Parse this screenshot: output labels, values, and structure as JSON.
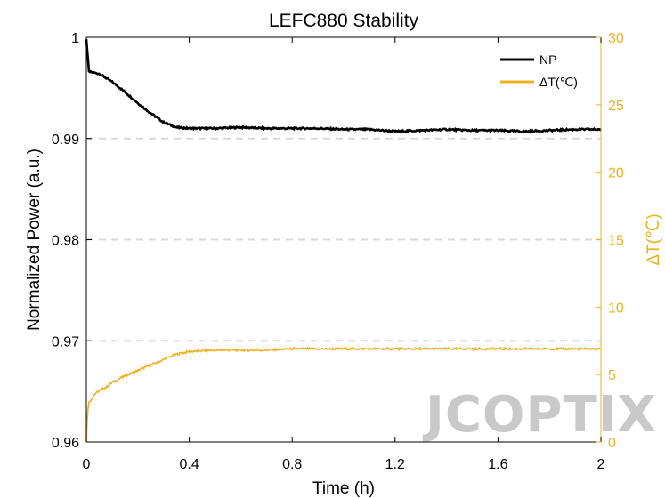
{
  "chart_data": {
    "type": "line",
    "title": "LEFC880 Stability",
    "xlabel": "Time (h)",
    "ylabel": "Normalized Power (a.u.)",
    "y2label": "ΔT(℃)",
    "xlim": [
      0,
      2
    ],
    "ylim": [
      0.96,
      1
    ],
    "y2lim": [
      0,
      30
    ],
    "xticks": [
      0,
      0.4,
      0.8,
      1.2,
      1.6,
      2
    ],
    "xtick_labels": [
      "0",
      "0.4",
      "0.8",
      "1.2",
      "1.6",
      "2"
    ],
    "yticks": [
      0.96,
      0.97,
      0.98,
      0.99,
      1
    ],
    "ytick_labels": [
      "0.96",
      "0.97",
      "0.98",
      "0.99",
      "1"
    ],
    "y2ticks": [
      0,
      5,
      10,
      15,
      20,
      25,
      30
    ],
    "y2tick_labels": [
      "0",
      "5",
      "10",
      "15",
      "20",
      "25",
      "30"
    ],
    "grid": "horizontal dashed at left-axis ticks",
    "legend_position": "top-right",
    "colors": {
      "np": "#000000",
      "dt": "#EDB120",
      "grid": "#d9d9d9"
    },
    "series": [
      {
        "name": "NP",
        "axis": "left",
        "x": [
          0,
          0.01,
          0.05,
          0.1,
          0.15,
          0.2,
          0.25,
          0.3,
          0.35,
          0.4,
          0.5,
          0.6,
          0.7,
          0.8,
          0.9,
          1.0,
          1.1,
          1.2,
          1.3,
          1.4,
          1.5,
          1.6,
          1.7,
          1.8,
          1.9,
          2.0
        ],
        "values": [
          0.9998,
          0.9966,
          0.9964,
          0.9956,
          0.9946,
          0.9935,
          0.9925,
          0.9916,
          0.9911,
          0.991,
          0.991,
          0.9911,
          0.991,
          0.991,
          0.991,
          0.9909,
          0.9909,
          0.9907,
          0.9908,
          0.9909,
          0.9908,
          0.9908,
          0.9907,
          0.9908,
          0.9909,
          0.9909
        ]
      },
      {
        "name": "ΔT(℃)",
        "axis": "right",
        "x": [
          0,
          0.005,
          0.01,
          0.03,
          0.05,
          0.08,
          0.1,
          0.15,
          0.2,
          0.25,
          0.3,
          0.35,
          0.4,
          0.5,
          0.6,
          0.7,
          0.8,
          0.9,
          1.0,
          1.1,
          1.2,
          1.3,
          1.4,
          1.5,
          1.6,
          1.7,
          1.8,
          1.9,
          2.0
        ],
        "values": [
          0,
          2.4,
          2.9,
          3.5,
          3.8,
          4.1,
          4.4,
          4.9,
          5.3,
          5.7,
          6.1,
          6.5,
          6.7,
          6.8,
          6.8,
          6.8,
          6.9,
          6.9,
          6.9,
          6.9,
          6.9,
          6.9,
          6.9,
          6.9,
          6.9,
          6.9,
          6.9,
          6.9,
          6.9
        ]
      }
    ]
  },
  "watermark": "JCOPTIX"
}
